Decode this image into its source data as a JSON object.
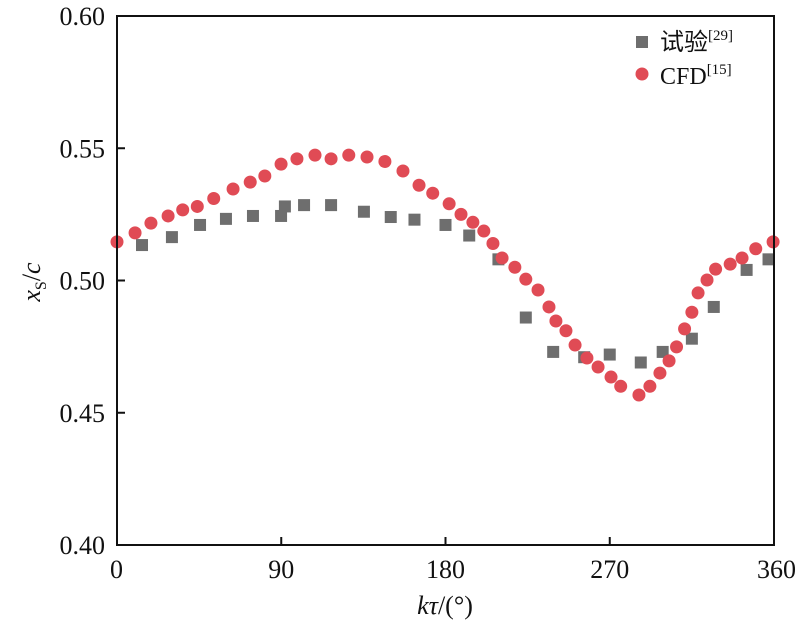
{
  "chart_data": {
    "type": "scatter",
    "title": "",
    "xlabel_parts": {
      "italic": "kτ",
      "rest": "/(°)"
    },
    "ylabel_parts": {
      "italic": "x",
      "sub": "S",
      "rest": "/",
      "italic2": "c"
    },
    "xlim": [
      0,
      360
    ],
    "ylim": [
      0.4,
      0.6
    ],
    "xticks": [
      0,
      90,
      180,
      270,
      360
    ],
    "xtick_labels": [
      "0",
      "90",
      "180",
      "270",
      "360"
    ],
    "yticks": [
      0.4,
      0.45,
      0.5,
      0.55,
      0.6
    ],
    "ytick_labels": [
      "0.40",
      "0.45",
      "0.50",
      "0.55",
      "0.60"
    ],
    "grid": false,
    "legend_position": "top-right",
    "series": [
      {
        "name": "试验",
        "ref": "[29]",
        "marker": "square",
        "color": "#6e6e6e",
        "x": [
          13.7,
          30.1,
          45.5,
          59.7,
          74.5,
          89.9,
          92,
          102.5,
          117.3,
          135.3,
          150,
          163,
          180,
          193,
          209,
          224,
          239,
          256,
          270,
          287,
          299,
          315,
          327,
          345,
          357
        ],
        "y": [
          0.5134,
          0.5164,
          0.521,
          0.5233,
          0.5244,
          0.5244,
          0.528,
          0.5285,
          0.5285,
          0.526,
          0.524,
          0.523,
          0.521,
          0.517,
          0.508,
          0.486,
          0.473,
          0.471,
          0.472,
          0.469,
          0.473,
          0.478,
          0.49,
          0.504,
          0.508
        ]
      },
      {
        "name": "CFD",
        "ref": "[15]",
        "marker": "circle",
        "color": "#e04b55",
        "x": [
          0,
          9.9,
          18.6,
          28,
          36,
          44,
          53,
          63.6,
          73,
          81,
          89.9,
          98.6,
          108.5,
          117.3,
          127,
          137,
          146.8,
          156.7,
          165.5,
          173,
          182,
          188.5,
          195,
          201,
          206,
          211,
          218,
          224,
          230.7,
          236.7,
          240.5,
          246,
          251,
          257.5,
          263.6,
          270.7,
          276,
          286,
          292,
          297.5,
          302.5,
          306.6,
          311,
          315,
          318.4,
          323.3,
          328,
          336,
          342.5,
          350,
          359.5
        ],
        "y": [
          0.5146,
          0.518,
          0.5217,
          0.5244,
          0.5267,
          0.528,
          0.531,
          0.5346,
          0.5372,
          0.5395,
          0.544,
          0.546,
          0.5474,
          0.546,
          0.5474,
          0.5467,
          0.545,
          0.5414,
          0.536,
          0.533,
          0.529,
          0.525,
          0.522,
          0.5187,
          0.514,
          0.5085,
          0.505,
          0.5005,
          0.4964,
          0.49,
          0.4847,
          0.481,
          0.4756,
          0.4707,
          0.4673,
          0.4635,
          0.46,
          0.4567,
          0.46,
          0.465,
          0.4696,
          0.4749,
          0.4817,
          0.488,
          0.4953,
          0.5002,
          0.5043,
          0.5062,
          0.5085,
          0.512,
          0.5146
        ]
      }
    ]
  }
}
